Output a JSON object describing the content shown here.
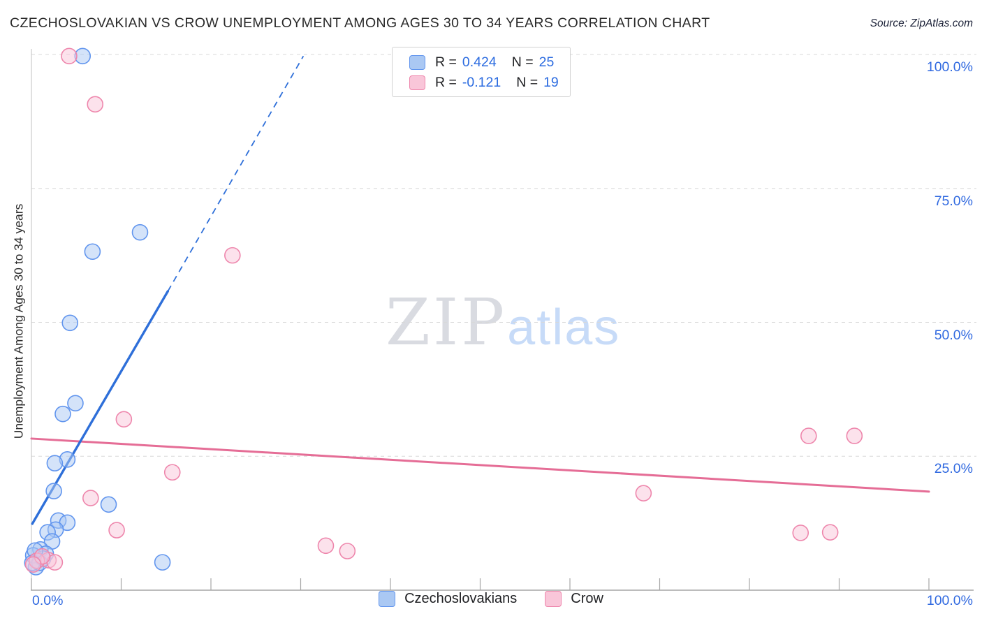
{
  "header": {
    "title": "CZECHOSLOVAKIAN VS CROW UNEMPLOYMENT AMONG AGES 30 TO 34 YEARS CORRELATION CHART",
    "source": "Source: ZipAtlas.com"
  },
  "legend_box": {
    "rows": [
      {
        "series": "Czechoslovakians",
        "r_prefix": "R =",
        "r_value": "0.424",
        "n_prefix": "N =",
        "n_value": "25"
      },
      {
        "series": "Crow",
        "r_prefix": "R =",
        "r_value": "-0.121",
        "n_prefix": "N =",
        "n_value": "19"
      }
    ]
  },
  "watermark": {
    "part1": "ZIP",
    "part2": "atlas"
  },
  "y_axis": {
    "title": "Unemployment Among Ages 30 to 34 years"
  },
  "x_axis": {
    "left_label": "0.0%",
    "right_label": "100.0%"
  },
  "bottom_legend": {
    "items": [
      {
        "label": "Czechoslovakians",
        "series": "blue"
      },
      {
        "label": "Crow",
        "series": "pink"
      }
    ]
  },
  "colors": {
    "blue_series_stroke": "#6195ee",
    "blue_series_fill": "#aac8f3",
    "pink_series_stroke": "#ee86ac",
    "pink_series_fill": "#f9c6d9",
    "blue_trend": "#2e6fd9",
    "pink_trend": "#e56d96",
    "tick_label": "#3069e0",
    "legend_value": "#2b6be0",
    "gridline": "#d8d8d8",
    "axis_line": "#a6a6a6",
    "left_spine": "#cccccc"
  },
  "chart_data": {
    "type": "scatter",
    "title": "CZECHOSLOVAKIAN VS CROW UNEMPLOYMENT AMONG AGES 30 TO 34 YEARS CORRELATION CHART",
    "x_range": [
      0,
      100
    ],
    "y_range": [
      0,
      100
    ],
    "grid": true,
    "legend_position": "top-center",
    "y_ticks": [
      {
        "value": 100,
        "label": "100.0%"
      },
      {
        "value": 75,
        "label": "75.0%"
      },
      {
        "value": 50,
        "label": "50.0%"
      },
      {
        "value": 25,
        "label": "25.0%"
      }
    ],
    "x_ticks_shown": [
      {
        "value": 0,
        "label": "0.0%"
      },
      {
        "value": 100,
        "label": "100.0%"
      }
    ],
    "x_minor_tick_step": 10,
    "series": [
      {
        "name": "Czechoslovakians",
        "r": 0.424,
        "n": 25,
        "points": [
          [
            5.7,
            99.7
          ],
          [
            12.1,
            66.8
          ],
          [
            6.8,
            63.2
          ],
          [
            4.3,
            49.9
          ],
          [
            4.9,
            34.9
          ],
          [
            3.5,
            32.9
          ],
          [
            4.0,
            24.4
          ],
          [
            2.6,
            23.7
          ],
          [
            2.5,
            18.5
          ],
          [
            8.6,
            16.0
          ],
          [
            14.6,
            5.2
          ],
          [
            3.0,
            13.0
          ],
          [
            4.0,
            12.6
          ],
          [
            2.7,
            11.3
          ],
          [
            1.8,
            10.8
          ],
          [
            2.3,
            9.1
          ],
          [
            1.0,
            7.6
          ],
          [
            1.6,
            6.8
          ],
          [
            0.6,
            5.5
          ],
          [
            0.5,
            4.3
          ],
          [
            0.2,
            6.5
          ],
          [
            0.9,
            5.1
          ],
          [
            1.3,
            5.9
          ],
          [
            0.4,
            7.4
          ],
          [
            0.1,
            5.1
          ]
        ]
      },
      {
        "name": "Crow",
        "r": -0.121,
        "n": 19,
        "points": [
          [
            4.2,
            99.7
          ],
          [
            7.1,
            90.7
          ],
          [
            22.4,
            62.5
          ],
          [
            10.3,
            31.9
          ],
          [
            86.6,
            28.8
          ],
          [
            91.7,
            28.8
          ],
          [
            15.7,
            22.0
          ],
          [
            68.2,
            18.1
          ],
          [
            6.6,
            17.2
          ],
          [
            9.5,
            11.2
          ],
          [
            85.7,
            10.7
          ],
          [
            89.0,
            10.8
          ],
          [
            32.8,
            8.3
          ],
          [
            35.2,
            7.3
          ],
          [
            1.9,
            5.6
          ],
          [
            2.6,
            5.2
          ],
          [
            0.6,
            5.5
          ],
          [
            1.2,
            6.3
          ],
          [
            0.2,
            4.8
          ]
        ]
      }
    ],
    "trend_lines": [
      {
        "series": "Czechoslovakians",
        "solid_from": [
          0.1,
          12.4
        ],
        "solid_to": [
          15.2,
          55.8
        ],
        "dashed_to": [
          30.3,
          99.7
        ]
      },
      {
        "series": "Crow",
        "from": [
          0,
          28.3
        ],
        "to": [
          100,
          18.4
        ]
      }
    ]
  }
}
